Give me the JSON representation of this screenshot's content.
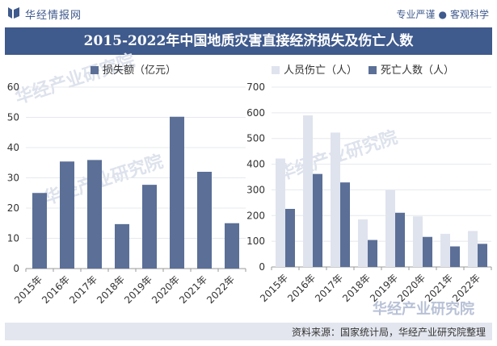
{
  "header": {
    "brand": "华经情报网",
    "slogan_left": "专业严谨",
    "slogan_right": "客观科学"
  },
  "title": "2015-2022年中国地质灾害直接经济损失及伤亡人数",
  "source": "资料来源：国家统计局，华经产业研究院整理",
  "watermark": "华经产业研究院",
  "colors": {
    "primary": "#3f5a8c",
    "bar_dark": "#5b6f97",
    "bar_light": "#dfe3ee"
  },
  "chart_data": [
    {
      "type": "bar",
      "categories": [
        "2015年",
        "2016年",
        "2017年",
        "2018年",
        "2019年",
        "2020年",
        "2021年",
        "2022年"
      ],
      "series": [
        {
          "name": "损失额（亿元）",
          "values": [
            25,
            35.4,
            35.9,
            14.7,
            27.7,
            50.2,
            32,
            15
          ]
        }
      ],
      "ylim": [
        0,
        60
      ],
      "yticks": [
        0,
        10,
        20,
        30,
        40,
        50,
        60
      ],
      "legend": "top-left"
    },
    {
      "type": "bar",
      "categories": [
        "2015年",
        "2016年",
        "2017年",
        "2018年",
        "2019年",
        "2020年",
        "2021年",
        "2022年"
      ],
      "series": [
        {
          "name": "人员伤亡（人）",
          "values": [
            422,
            590,
            523,
            185,
            299,
            197,
            129,
            140
          ]
        },
        {
          "name": "死亡人数（人）",
          "values": [
            226,
            362,
            329,
            105,
            211,
            117,
            80,
            90
          ]
        }
      ],
      "ylim": [
        0,
        700
      ],
      "yticks": [
        0,
        100,
        200,
        300,
        400,
        500,
        600,
        700
      ],
      "legend": "top"
    }
  ]
}
